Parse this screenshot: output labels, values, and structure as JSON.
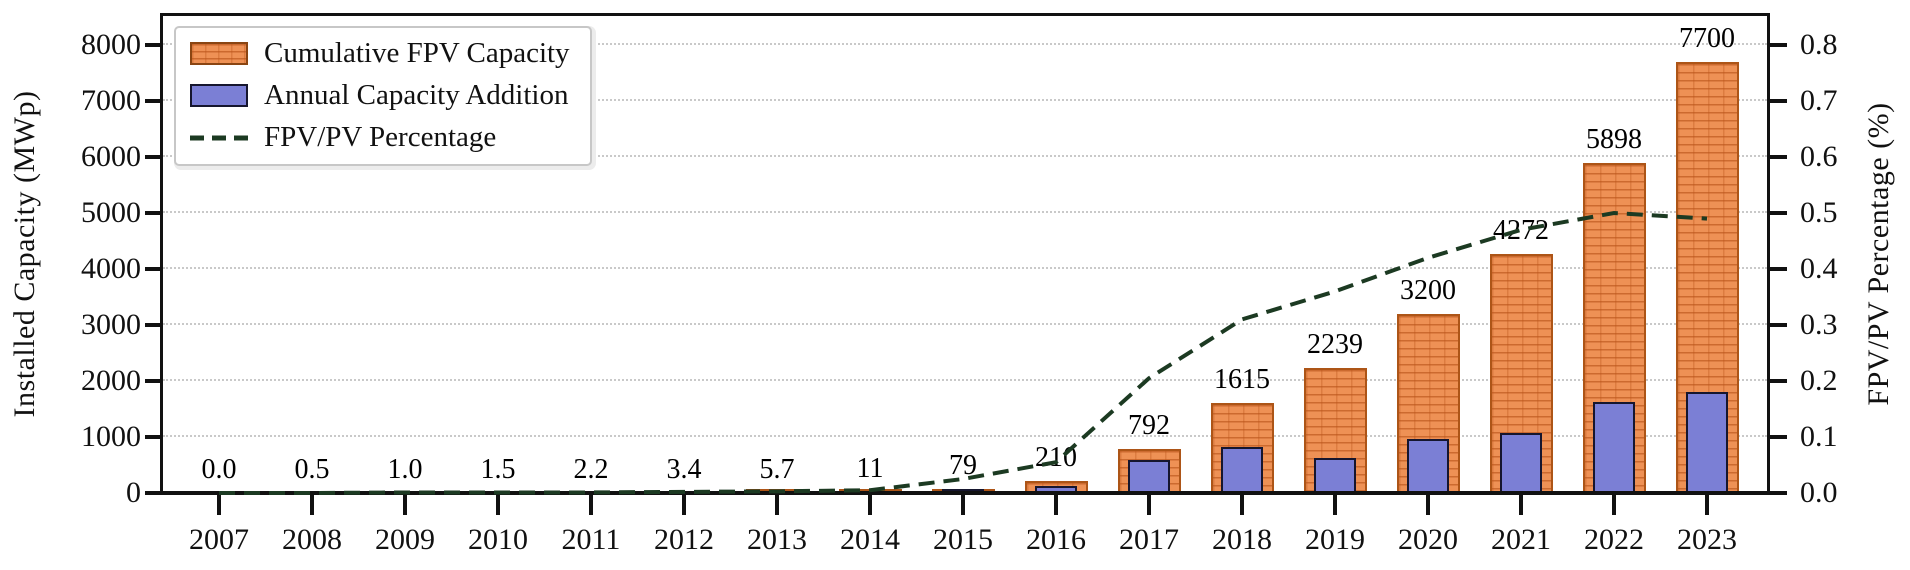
{
  "figure": {
    "left_axis_title": "Installed Capacity (MWp)",
    "right_axis_title": "FPV/PV Percentage (%)",
    "left_tick_labels": [
      "0",
      "1000",
      "2000",
      "3000",
      "4000",
      "5000",
      "6000",
      "7000",
      "8000"
    ],
    "right_tick_labels": [
      "0.0",
      "0.1",
      "0.2",
      "0.3",
      "0.4",
      "0.5",
      "0.6",
      "0.7",
      "0.8"
    ],
    "colors": {
      "cumulative_bar": "#ee9155",
      "cumulative_edge": "#ad5517",
      "annual_bar": "#7b7fd5",
      "annual_edge": "#16162e",
      "percentage_line": "#1c3a22",
      "grid": "#c9c9c9",
      "spine": "#111111"
    }
  },
  "chart_data": {
    "type": "bar",
    "subtype": "grouped-overlay bars with secondary-axis dashed line",
    "categories": [
      "2007",
      "2008",
      "2009",
      "2010",
      "2011",
      "2012",
      "2013",
      "2014",
      "2015",
      "2016",
      "2017",
      "2018",
      "2019",
      "2020",
      "2021",
      "2022",
      "2023"
    ],
    "series": [
      {
        "name": "Cumulative FPV Capacity",
        "type": "bar",
        "axis": "left",
        "color": "#ee9155",
        "values": [
          0.0,
          0.5,
          1.0,
          1.5,
          2.2,
          3.4,
          5.7,
          11,
          79,
          210,
          792,
          1615,
          2239,
          3200,
          4272,
          5898,
          7700
        ],
        "value_labels": [
          "0.0",
          "0.5",
          "1.0",
          "1.5",
          "2.2",
          "3.4",
          "5.7",
          "11",
          "79",
          "210",
          "792",
          "1615",
          "2239",
          "3200",
          "4272",
          "5898",
          "7700"
        ]
      },
      {
        "name": "Annual Capacity Addition",
        "type": "bar",
        "axis": "left",
        "color": "#7b7fd5",
        "values": [
          0.0,
          0.5,
          0.5,
          0.5,
          0.7,
          1.2,
          2.3,
          5.3,
          68,
          131,
          582,
          823,
          624,
          961,
          1072,
          1626,
          1802
        ]
      },
      {
        "name": "FPV/PV Percentage",
        "type": "line",
        "style": "dashed",
        "axis": "right",
        "color": "#1c3a22",
        "values": [
          0.0,
          0.0,
          0.001,
          0.001,
          0.001,
          0.002,
          0.003,
          0.005,
          0.025,
          0.055,
          0.205,
          0.31,
          0.36,
          0.42,
          0.47,
          0.5,
          0.49
        ]
      }
    ],
    "title": "",
    "xlabel": "",
    "ylabel_left": "Installed Capacity (MWp)",
    "ylabel_right": "FPV/PV Percentage (%)",
    "ylim_left": [
      0,
      8536
    ],
    "ylim_right": [
      0,
      0.8536
    ],
    "left_ticks": [
      0,
      1000,
      2000,
      3000,
      4000,
      5000,
      6000,
      7000,
      8000
    ],
    "right_ticks": [
      0.0,
      0.1,
      0.2,
      0.3,
      0.4,
      0.5,
      0.6,
      0.7,
      0.8
    ],
    "grid": "horizontal dotted",
    "legend_position": "upper left"
  }
}
